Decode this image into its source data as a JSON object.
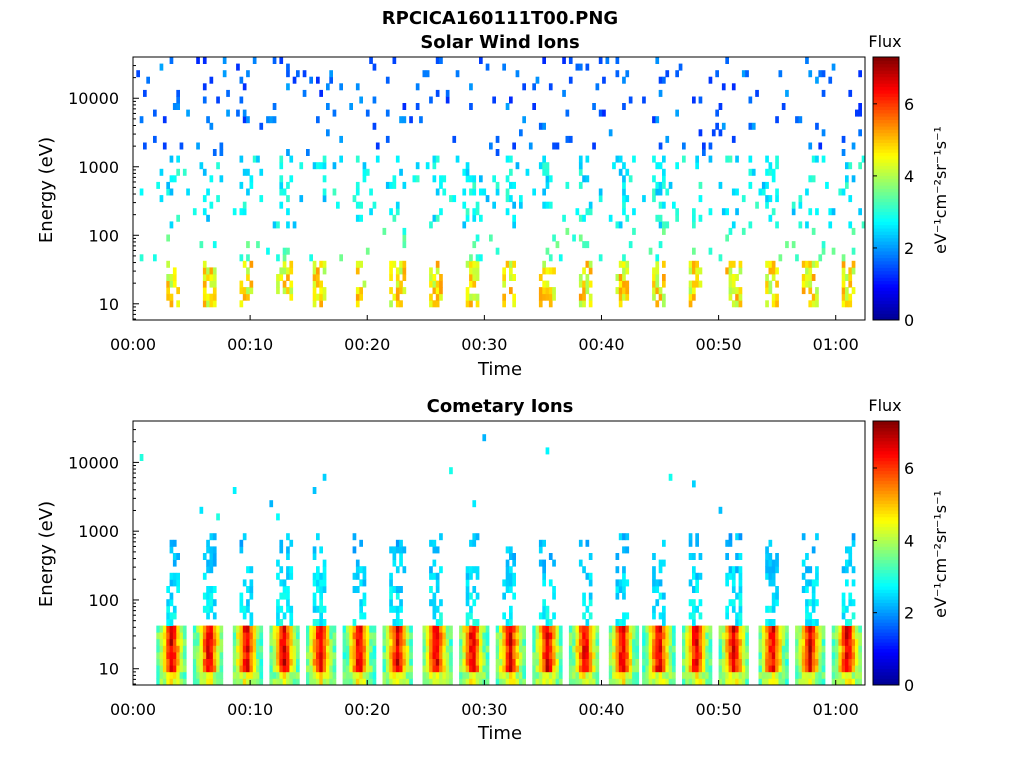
{
  "figure_title": "RPCICA160111T00.PNG",
  "colormap": [
    "#00008f",
    "#0000ff",
    "#0080ff",
    "#00ffff",
    "#80ff80",
    "#ffff00",
    "#ff8000",
    "#ff0000",
    "#800000"
  ],
  "chart_data": [
    {
      "type": "heatmap",
      "title": "Solar Wind Ions",
      "xlabel": "Time",
      "ylabel": "Energy (eV)",
      "xlim_minutes": [
        0,
        62.5
      ],
      "ylim": [
        5.8,
        40000
      ],
      "yscale": "log",
      "x_ticks": [
        "00:00",
        "00:10",
        "00:20",
        "00:30",
        "00:40",
        "00:50",
        "01:00"
      ],
      "y_ticks": [
        "10",
        "100",
        "1000",
        "10000"
      ],
      "colorbar": {
        "label": "Flux",
        "units": "eV⁻¹cm⁻²sr⁻¹s⁻¹",
        "range": [
          0,
          7.3
        ],
        "ticks": [
          "0",
          "2",
          "4",
          "6"
        ]
      },
      "bursts_minutes": [
        3.3,
        6.5,
        9.7,
        12.9,
        16.0,
        19.3,
        22.6,
        25.9,
        29.0,
        32.2,
        35.4,
        38.6,
        41.8,
        44.9,
        48.1,
        51.3,
        54.6,
        57.8,
        61.0
      ],
      "notes": "sparse low flux (~1-2) above 1 keV; moderate flux (~3-5) near 10-40 eV"
    },
    {
      "type": "heatmap",
      "title": "Cometary Ions",
      "xlabel": "Time",
      "ylabel": "Energy (eV)",
      "xlim_minutes": [
        0,
        62.5
      ],
      "ylim": [
        5.8,
        40000
      ],
      "yscale": "log",
      "x_ticks": [
        "00:00",
        "00:10",
        "00:20",
        "00:30",
        "00:40",
        "00:50",
        "01:00"
      ],
      "y_ticks": [
        "10",
        "100",
        "1000",
        "10000"
      ],
      "colorbar": {
        "label": "Flux",
        "units": "eV⁻¹cm⁻²sr⁻¹s⁻¹",
        "range": [
          0,
          7.3
        ],
        "ticks": [
          "0",
          "2",
          "4",
          "6"
        ]
      },
      "bursts_minutes": [
        3.3,
        6.5,
        9.7,
        12.9,
        16.0,
        19.3,
        22.6,
        25.9,
        29.0,
        32.2,
        35.4,
        38.6,
        41.8,
        44.9,
        48.1,
        51.3,
        54.6,
        57.8,
        61.0
      ],
      "notes": "periodic bursts peaking ~6-7 at 15-30 eV, plumes extending to ~1000 eV at flux ~2-3"
    }
  ]
}
